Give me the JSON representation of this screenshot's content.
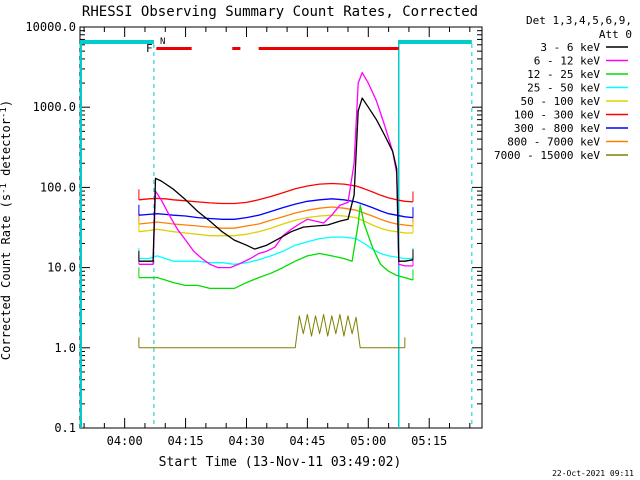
{
  "chart_data": {
    "type": "line",
    "title": "RHESSI Observing Summary Count Rates, Corrected",
    "xlabel": "Start Time (13-Nov-11 03:49:02)",
    "ylabel": "Corrected Count Rate (s^-1 detector^-1)",
    "y_scale": "log",
    "ylim": [
      0.1,
      10000
    ],
    "xlim_minutes": [
      -11,
      88
    ],
    "y_ticks": [
      {
        "v": 0.1,
        "label": "0.1"
      },
      {
        "v": 1,
        "label": "1.0"
      },
      {
        "v": 10,
        "label": "10.0"
      },
      {
        "v": 100,
        "label": "100.0"
      },
      {
        "v": 1000,
        "label": "1000.0"
      },
      {
        "v": 10000,
        "label": "10000.0"
      }
    ],
    "x_ticks": [
      {
        "t": 0,
        "label": "04:00"
      },
      {
        "t": 15,
        "label": "04:15"
      },
      {
        "t": 30,
        "label": "04:30"
      },
      {
        "t": 45,
        "label": "04:45"
      },
      {
        "t": 60,
        "label": "05:00"
      },
      {
        "t": 75,
        "label": "05:15"
      }
    ],
    "legend": {
      "position": "right",
      "header": [
        "Det 1,3,4,5,6,9,",
        "Att 0"
      ],
      "entries": [
        {
          "label": "3 - 6 keV",
          "color": "#000000"
        },
        {
          "label": "6 - 12 keV",
          "color": "#ff00ff"
        },
        {
          "label": "12 - 25 keV",
          "color": "#00dd00"
        },
        {
          "label": "25 - 50 keV",
          "color": "#00ffff"
        },
        {
          "label": "50 - 100 keV",
          "color": "#e0d000"
        },
        {
          "label": "100 - 300 keV",
          "color": "#ff0000"
        },
        {
          "label": "300 - 800 keV",
          "color": "#0000ff"
        },
        {
          "label": "800 - 7000 keV",
          "color": "#ff8000"
        },
        {
          "label": "7000 - 15000 keV",
          "color": "#808000"
        }
      ]
    },
    "flags": {
      "F_label": "F",
      "N_label": "N",
      "F_color": "#ee0000",
      "N_color": "#00cccc"
    },
    "night_intervals_minutes": [
      [
        -11,
        7.2
      ],
      [
        67.5,
        85.5
      ]
    ],
    "saa_flare_intervals_minutes": [
      [
        7.8,
        16.5
      ],
      [
        26.5,
        28.5
      ],
      [
        33,
        67.5
      ]
    ],
    "series": [
      {
        "name": "3 - 6 keV",
        "color": "#000000",
        "points": [
          [
            3.5,
            12
          ],
          [
            5,
            12
          ],
          [
            7,
            12
          ],
          [
            7.6,
            130
          ],
          [
            9,
            120
          ],
          [
            12,
            95
          ],
          [
            15,
            70
          ],
          [
            18,
            50
          ],
          [
            21,
            38
          ],
          [
            24,
            28
          ],
          [
            27,
            22
          ],
          [
            30,
            19
          ],
          [
            32,
            17
          ],
          [
            35,
            19
          ],
          [
            38,
            23
          ],
          [
            41,
            28
          ],
          [
            44,
            32
          ],
          [
            47,
            33
          ],
          [
            50,
            34
          ],
          [
            53,
            38
          ],
          [
            55,
            40
          ],
          [
            56.5,
            80
          ],
          [
            57.5,
            900
          ],
          [
            58.5,
            1300
          ],
          [
            60,
            1000
          ],
          [
            62,
            700
          ],
          [
            64,
            450
          ],
          [
            66,
            280
          ],
          [
            67,
            170
          ],
          [
            67.5,
            12
          ],
          [
            69,
            12
          ],
          [
            71,
            12.5
          ]
        ]
      },
      {
        "name": "6 - 12 keV",
        "color": "#ff00ff",
        "points": [
          [
            3.5,
            11
          ],
          [
            5,
            11
          ],
          [
            7,
            11
          ],
          [
            7.6,
            90
          ],
          [
            9,
            70
          ],
          [
            11,
            45
          ],
          [
            13,
            30
          ],
          [
            15,
            22
          ],
          [
            17,
            16
          ],
          [
            19,
            13
          ],
          [
            21,
            11
          ],
          [
            23,
            10
          ],
          [
            26,
            10
          ],
          [
            28,
            11
          ],
          [
            31,
            13
          ],
          [
            33,
            15
          ],
          [
            35,
            16
          ],
          [
            37,
            18
          ],
          [
            39,
            25
          ],
          [
            41,
            30
          ],
          [
            43,
            35
          ],
          [
            45,
            40
          ],
          [
            47,
            38
          ],
          [
            49,
            36
          ],
          [
            51,
            45
          ],
          [
            53,
            60
          ],
          [
            55,
            65
          ],
          [
            56.5,
            200
          ],
          [
            57.5,
            2000
          ],
          [
            58.5,
            2700
          ],
          [
            60,
            2000
          ],
          [
            62,
            1200
          ],
          [
            64,
            600
          ],
          [
            66,
            280
          ],
          [
            67,
            150
          ],
          [
            67.5,
            11
          ],
          [
            69,
            10.5
          ],
          [
            71,
            10.5
          ]
        ]
      },
      {
        "name": "12 - 25 keV",
        "color": "#00dd00",
        "points": [
          [
            3.5,
            7.5
          ],
          [
            6,
            7.5
          ],
          [
            8,
            7.5
          ],
          [
            10,
            7
          ],
          [
            12,
            6.5
          ],
          [
            15,
            6
          ],
          [
            18,
            6
          ],
          [
            21,
            5.5
          ],
          [
            24,
            5.5
          ],
          [
            27,
            5.5
          ],
          [
            30,
            6.5
          ],
          [
            33,
            7.5
          ],
          [
            36,
            8.5
          ],
          [
            39,
            10
          ],
          [
            42,
            12
          ],
          [
            45,
            14
          ],
          [
            48,
            15
          ],
          [
            51,
            14
          ],
          [
            54,
            13
          ],
          [
            56,
            12
          ],
          [
            57.5,
            35
          ],
          [
            58,
            60
          ],
          [
            59,
            35
          ],
          [
            61,
            18
          ],
          [
            63,
            11
          ],
          [
            65,
            9
          ],
          [
            67,
            8
          ],
          [
            69,
            7.5
          ],
          [
            71,
            7
          ]
        ]
      },
      {
        "name": "25 - 50 keV",
        "color": "#00ffff",
        "points": [
          [
            3.5,
            13
          ],
          [
            6,
            13
          ],
          [
            8,
            14
          ],
          [
            10,
            13
          ],
          [
            12,
            12
          ],
          [
            15,
            12
          ],
          [
            18,
            12
          ],
          [
            21,
            11.5
          ],
          [
            24,
            11.5
          ],
          [
            27,
            11
          ],
          [
            30,
            11.5
          ],
          [
            33,
            12.5
          ],
          [
            36,
            14
          ],
          [
            39,
            16
          ],
          [
            42,
            19
          ],
          [
            45,
            21
          ],
          [
            48,
            23
          ],
          [
            51,
            24
          ],
          [
            54,
            24
          ],
          [
            57,
            23
          ],
          [
            59,
            20
          ],
          [
            61,
            17
          ],
          [
            63,
            15
          ],
          [
            65,
            14
          ],
          [
            67,
            13.5
          ],
          [
            69,
            13
          ],
          [
            71,
            13
          ]
        ]
      },
      {
        "name": "50 - 100 keV",
        "color": "#e0d000",
        "points": [
          [
            3.5,
            28
          ],
          [
            6,
            29
          ],
          [
            8,
            30
          ],
          [
            10,
            29
          ],
          [
            12,
            28
          ],
          [
            15,
            27
          ],
          [
            18,
            26
          ],
          [
            21,
            25
          ],
          [
            24,
            25
          ],
          [
            27,
            25
          ],
          [
            30,
            26
          ],
          [
            33,
            28
          ],
          [
            36,
            31
          ],
          [
            39,
            35
          ],
          [
            42,
            39
          ],
          [
            45,
            42
          ],
          [
            48,
            44
          ],
          [
            51,
            45
          ],
          [
            54,
            44
          ],
          [
            57,
            42
          ],
          [
            59,
            38
          ],
          [
            61,
            34
          ],
          [
            63,
            31
          ],
          [
            65,
            29
          ],
          [
            67,
            28
          ],
          [
            69,
            27
          ],
          [
            71,
            27
          ]
        ]
      },
      {
        "name": "100 - 300 keV",
        "color": "#ff0000",
        "points": [
          [
            3.5,
            70
          ],
          [
            6,
            72
          ],
          [
            8,
            73
          ],
          [
            10,
            72
          ],
          [
            12,
            70
          ],
          [
            15,
            68
          ],
          [
            18,
            66
          ],
          [
            21,
            64
          ],
          [
            24,
            63
          ],
          [
            27,
            63
          ],
          [
            30,
            65
          ],
          [
            33,
            70
          ],
          [
            36,
            77
          ],
          [
            39,
            86
          ],
          [
            42,
            96
          ],
          [
            45,
            104
          ],
          [
            48,
            110
          ],
          [
            51,
            112
          ],
          [
            54,
            110
          ],
          [
            57,
            104
          ],
          [
            59,
            96
          ],
          [
            61,
            88
          ],
          [
            63,
            80
          ],
          [
            65,
            74
          ],
          [
            67,
            70
          ],
          [
            69,
            67
          ],
          [
            71,
            66
          ]
        ]
      },
      {
        "name": "300 - 800 keV",
        "color": "#0000ff",
        "points": [
          [
            3.5,
            45
          ],
          [
            6,
            46
          ],
          [
            8,
            47
          ],
          [
            10,
            46
          ],
          [
            12,
            45
          ],
          [
            15,
            44
          ],
          [
            18,
            42
          ],
          [
            21,
            41
          ],
          [
            24,
            40
          ],
          [
            27,
            40
          ],
          [
            30,
            42
          ],
          [
            33,
            45
          ],
          [
            36,
            50
          ],
          [
            39,
            56
          ],
          [
            42,
            62
          ],
          [
            45,
            67
          ],
          [
            48,
            70
          ],
          [
            51,
            72
          ],
          [
            54,
            70
          ],
          [
            57,
            66
          ],
          [
            59,
            61
          ],
          [
            61,
            56
          ],
          [
            63,
            51
          ],
          [
            65,
            47
          ],
          [
            67,
            45
          ],
          [
            69,
            43
          ],
          [
            71,
            42
          ]
        ]
      },
      {
        "name": "800 - 7000 keV",
        "color": "#ff8000",
        "points": [
          [
            3.5,
            35
          ],
          [
            6,
            36
          ],
          [
            8,
            37
          ],
          [
            10,
            36
          ],
          [
            12,
            35
          ],
          [
            15,
            34
          ],
          [
            18,
            33
          ],
          [
            21,
            32
          ],
          [
            24,
            31
          ],
          [
            27,
            31
          ],
          [
            30,
            33
          ],
          [
            33,
            35
          ],
          [
            36,
            39
          ],
          [
            39,
            43
          ],
          [
            42,
            48
          ],
          [
            45,
            52
          ],
          [
            48,
            55
          ],
          [
            51,
            57
          ],
          [
            54,
            55
          ],
          [
            57,
            52
          ],
          [
            59,
            48
          ],
          [
            61,
            44
          ],
          [
            63,
            40
          ],
          [
            65,
            37
          ],
          [
            67,
            35
          ],
          [
            69,
            34
          ],
          [
            71,
            33
          ]
        ]
      },
      {
        "name": "7000 - 15000 keV",
        "color": "#808000",
        "points": [
          [
            3.5,
            1
          ],
          [
            10,
            1
          ],
          [
            20,
            1
          ],
          [
            30,
            1
          ],
          [
            38,
            1
          ],
          [
            42,
            1
          ],
          [
            43,
            2.5
          ],
          [
            44,
            1.5
          ],
          [
            45,
            2.6
          ],
          [
            46,
            1.4
          ],
          [
            47,
            2.5
          ],
          [
            48,
            1.5
          ],
          [
            49,
            2.6
          ],
          [
            50,
            1.4
          ],
          [
            51,
            2.5
          ],
          [
            52,
            1.5
          ],
          [
            53,
            2.6
          ],
          [
            54,
            1.4
          ],
          [
            55,
            2.5
          ],
          [
            56,
            1.5
          ],
          [
            57,
            2.4
          ],
          [
            58,
            1
          ],
          [
            62,
            1
          ],
          [
            66,
            1
          ],
          [
            68,
            1
          ],
          [
            69,
            1
          ]
        ]
      }
    ]
  },
  "footer": {
    "date": "22-Oct-2021 09:11"
  }
}
